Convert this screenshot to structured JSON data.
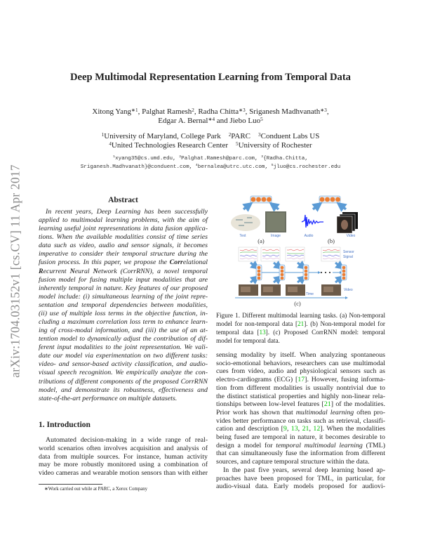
{
  "arxiv_stamp": "arXiv:1704.03152v1  [cs.CV]  11 Apr 2017",
  "title": "Deep Multimodal Representation Learning from Temporal Data",
  "authors": [
    [
      {
        "t": "Xitong Yang"
      },
      {
        "t": "∗1",
        "s": "sup"
      },
      {
        "t": ", Palghat Ramesh"
      },
      {
        "t": "2",
        "s": "sup"
      },
      {
        "t": ", Radha Chitta"
      },
      {
        "t": "∗3",
        "s": "sup"
      },
      {
        "t": ", Sriganesh Madhvanath"
      },
      {
        "t": "∗3",
        "s": "sup"
      },
      {
        "t": ","
      }
    ],
    [
      {
        "t": "Edgar A. Bernal"
      },
      {
        "t": "∗4",
        "s": "sup"
      },
      {
        "t": " and Jiebo Luo"
      },
      {
        "t": "5",
        "s": "sup"
      }
    ]
  ],
  "affiliations": [
    [
      {
        "t": "1",
        "s": "sup"
      },
      {
        "t": "University of Maryland, College Park    "
      },
      {
        "t": "2",
        "s": "sup"
      },
      {
        "t": "PARC    "
      },
      {
        "t": "3",
        "s": "sup"
      },
      {
        "t": "Conduent Labs US"
      }
    ],
    [
      {
        "t": "4",
        "s": "sup"
      },
      {
        "t": "United Technologies Research Center    "
      },
      {
        "t": "5",
        "s": "sup"
      },
      {
        "t": "University of Rochester"
      }
    ]
  ],
  "emails": [
    [
      {
        "t": "1",
        "s": "sup"
      },
      {
        "t": "xyang35@cs.umd.edu, "
      },
      {
        "t": "2",
        "s": "sup"
      },
      {
        "t": "Palghat.Ramesh@parc.com, "
      },
      {
        "t": "3",
        "s": "sup"
      },
      {
        "t": "{Radha.Chitta,"
      }
    ],
    [
      {
        "t": "Sriganesh.Madhvanath}@conduent.com, "
      },
      {
        "t": "4",
        "s": "sup"
      },
      {
        "t": "bernalea@utrc.utc.com, "
      },
      {
        "t": "5",
        "s": "sup"
      },
      {
        "t": "jluo@cs.rochester.edu"
      }
    ]
  ],
  "abstract": {
    "heading": "Abstract",
    "lines": [
      [
        {
          "t": "In recent years, Deep Learning has been successfully"
        }
      ],
      [
        {
          "t": "applied to multimodal learning problems, with the aim of"
        }
      ],
      [
        {
          "t": "learning useful joint representations in data fusion applica-"
        }
      ],
      [
        {
          "t": "tions. When the available modalities consist of time series"
        }
      ],
      [
        {
          "t": "data such as video, audio and sensor signals, it becomes"
        }
      ],
      [
        {
          "t": "imperative to consider their temporal structure during the"
        }
      ],
      [
        {
          "t": "fusion process. In this paper, we propose the "
        },
        {
          "t": "Corr",
          "s": "b"
        },
        {
          "t": "elational"
        }
      ],
      [
        {
          "t": "R",
          "s": "b"
        },
        {
          "t": "ecurrent "
        },
        {
          "t": "N",
          "s": "b"
        },
        {
          "t": "eural "
        },
        {
          "t": "N",
          "s": "b"
        },
        {
          "t": "etwork (CorrRNN), a novel temporal"
        }
      ],
      [
        {
          "t": "fusion model for fusing multiple input modalities that are"
        }
      ],
      [
        {
          "t": "inherently temporal in nature. Key features of our proposed"
        }
      ],
      [
        {
          "t": "model include: (i) simultaneous learning of the joint repre-"
        }
      ],
      [
        {
          "t": "sentation and temporal dependencies between modalities,"
        }
      ],
      [
        {
          "t": "(ii) use of multiple loss terms in the objective function, in-"
        }
      ],
      [
        {
          "t": "cluding a maximum correlation loss term to enhance learn-"
        }
      ],
      [
        {
          "t": "ing of cross-modal information, and (iii) the use of an at-"
        }
      ],
      [
        {
          "t": "tention model to dynamically adjust the contribution of dif-"
        }
      ],
      [
        {
          "t": "ferent input modalities to the joint representation. We vali-"
        }
      ],
      [
        {
          "t": "date our model via experimentation on two different tasks:"
        }
      ],
      [
        {
          "t": "video- and sensor-based activity classification, and audio-"
        }
      ],
      [
        {
          "t": "visual speech recognition. We empirically analyze the con-"
        }
      ],
      [
        {
          "t": "tributions of different components of the proposed CorrRNN"
        }
      ],
      [
        {
          "t": "model, and demonstrate its robustness, effectiveness and"
        }
      ],
      [
        {
          "t": "state-of-the-art performance on multiple datasets."
        }
      ]
    ]
  },
  "introduction": {
    "heading": "1. Introduction",
    "lines": [
      [
        {
          "t": "Automated decision-making in a wide range of real-"
        }
      ],
      [
        {
          "t": "world scenarios often involves acquisition and analysis of"
        }
      ],
      [
        {
          "t": "data from multiple sources.  For instance, human activity"
        }
      ],
      [
        {
          "t": "may be more robustly monitored using a combination of"
        }
      ],
      [
        {
          "t": "video cameras and wearable motion sensors than with either"
        }
      ]
    ]
  },
  "footnote": "∗Work carried out while at PARC, a Xerox Company",
  "figure": {
    "labels": {
      "text": "Text",
      "image": "Image",
      "audio": "Audio",
      "video": "Video",
      "sensor": "Sensor",
      "signal": "Signal",
      "video_c": "Video",
      "time": "Time",
      "a": "(a)",
      "b": "(b)",
      "c": "(c)"
    },
    "colors": {
      "node": "#ed7d31",
      "arrow": "#5b9bd5",
      "label": "#4472c4"
    },
    "caption": [
      [
        {
          "t": "Figure 1. Different multimodal learning tasks.  (a) Non-temporal"
        }
      ],
      [
        {
          "t": "model for non-temporal data ["
        },
        {
          "t": "21",
          "s": "c"
        },
        {
          "t": "].  (b) Non-temporal model for"
        }
      ],
      [
        {
          "t": "temporal data ["
        },
        {
          "t": "13",
          "s": "c"
        },
        {
          "t": "].  (c) Proposed CorrRNN model:  temporal"
        }
      ],
      [
        {
          "t": "model for temporal data."
        }
      ]
    ]
  },
  "right_column": {
    "lines": [
      [
        {
          "t": "sensing modality by itself.  When analyzing spontaneous"
        }
      ],
      [
        {
          "t": "socio-emotional behaviors, researchers can use multimodal"
        }
      ],
      [
        {
          "t": "cues from video, audio and physiological sensors such as"
        }
      ],
      [
        {
          "t": "electro-cardiograms (ECG) ["
        },
        {
          "t": "17",
          "s": "c"
        },
        {
          "t": "]. However, fusing informa-"
        }
      ],
      [
        {
          "t": "tion from different modalities is usually nontrivial due to"
        }
      ],
      [
        {
          "t": "the distinct statistical properties and highly non-linear rela-"
        }
      ],
      [
        {
          "t": "tionships between low-level features ["
        },
        {
          "t": "21",
          "s": "c"
        },
        {
          "t": "] of the modalities."
        }
      ],
      [
        {
          "t": "Prior work has shown that "
        },
        {
          "t": "multimodal learning",
          "s": "i"
        },
        {
          "t": " often pro-"
        }
      ],
      [
        {
          "t": "vides better performance on tasks such as retrieval, classifi-"
        }
      ],
      [
        {
          "t": "cation and description ["
        },
        {
          "t": "9",
          "s": "c"
        },
        {
          "t": ", "
        },
        {
          "t": "13",
          "s": "c"
        },
        {
          "t": ", "
        },
        {
          "t": "21",
          "s": "c"
        },
        {
          "t": ", "
        },
        {
          "t": "12",
          "s": "c"
        },
        {
          "t": "]. When the modalities"
        }
      ],
      [
        {
          "t": "being fused are temporal in nature, it becomes desirable to"
        }
      ],
      [
        {
          "t": "design a model for "
        },
        {
          "t": "temporal multimodal learning",
          "s": "i"
        },
        {
          "t": " (TML)"
        }
      ],
      [
        {
          "t": "that can simultaneously fuse the information from different"
        }
      ],
      [
        {
          "t": "sources, and capture temporal structure within the data."
        }
      ],
      [
        {
          "t": "In the past five years, several deep learning based ap-"
        }
      ],
      [
        {
          "t": "proaches have been proposed for TML, in particular, for"
        }
      ],
      [
        {
          "t": "audio-visual data.  Early models proposed for audiovi-"
        }
      ]
    ]
  }
}
